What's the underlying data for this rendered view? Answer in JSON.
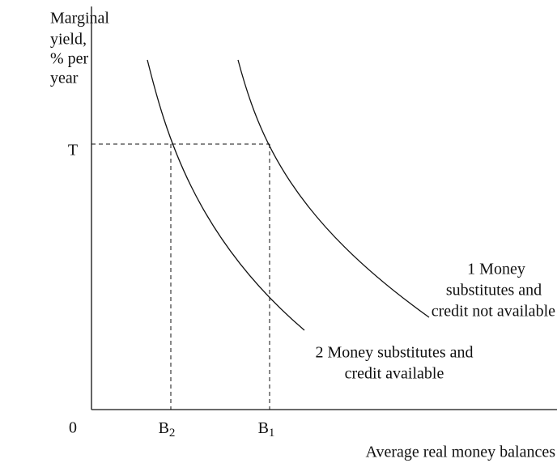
{
  "y_axis_label": [
    "Marginal",
    "yield,",
    "% per",
    "year"
  ],
  "x_axis_label": "Average real money balances",
  "origin": "0",
  "y_marker": "T",
  "x_markers": [
    {
      "base": "B",
      "sub": "2"
    },
    {
      "base": "B",
      "sub": "1"
    }
  ],
  "curves": [
    {
      "label": [
        "1 Money",
        "substitutes and",
        "credit not available"
      ]
    },
    {
      "label": [
        "2 Money substitutes and",
        "credit available"
      ]
    }
  ]
}
